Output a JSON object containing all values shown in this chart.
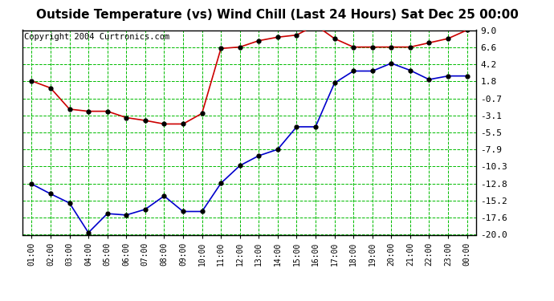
{
  "title": "Outside Temperature (vs) Wind Chill (Last 24 Hours) Sat Dec 25 00:00",
  "copyright": "Copyright 2004 Curtronics.com",
  "x_labels": [
    "01:00",
    "02:00",
    "03:00",
    "04:00",
    "05:00",
    "06:00",
    "07:00",
    "08:00",
    "09:00",
    "10:00",
    "11:00",
    "12:00",
    "13:00",
    "14:00",
    "15:00",
    "16:00",
    "17:00",
    "18:00",
    "19:00",
    "20:00",
    "21:00",
    "22:00",
    "23:00",
    "00:00"
  ],
  "outside_temp": [
    1.8,
    0.8,
    -2.2,
    -2.5,
    -2.5,
    -3.4,
    -3.8,
    -4.3,
    -4.3,
    -2.8,
    6.4,
    6.6,
    7.5,
    8.0,
    8.3,
    9.7,
    7.8,
    6.6,
    6.6,
    6.6,
    6.6,
    7.2,
    7.8,
    9.0
  ],
  "wind_chill": [
    -12.8,
    -14.2,
    -15.5,
    -19.7,
    -17.0,
    -17.2,
    -16.4,
    -14.5,
    -16.7,
    -16.7,
    -12.7,
    -10.2,
    -8.8,
    -7.9,
    -4.7,
    -4.7,
    1.5,
    3.2,
    3.2,
    4.3,
    3.3,
    2.0,
    2.5,
    2.5
  ],
  "ylim": [
    -20.0,
    9.0
  ],
  "yticks": [
    9.0,
    6.6,
    4.2,
    1.8,
    -0.7,
    -3.1,
    -5.5,
    -7.9,
    -10.3,
    -12.8,
    -15.2,
    -17.6,
    -20.0
  ],
  "bg_color": "#ffffff",
  "plot_bg_color": "#ffffff",
  "grid_color": "#00bb00",
  "temp_color": "#cc0000",
  "wind_color": "#0000cc",
  "marker_color": "#000000",
  "title_fontsize": 11,
  "copyright_fontsize": 7.5
}
